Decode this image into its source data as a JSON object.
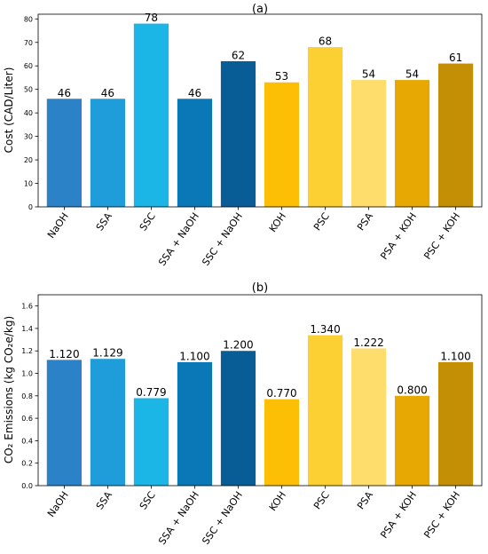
{
  "chart_data": [
    {
      "type": "bar",
      "title": "(a)",
      "ylabel": "Cost (CAD/Liter)",
      "ylim": [
        0,
        82
      ],
      "yticks": [
        0,
        10,
        20,
        30,
        40,
        50,
        60,
        70,
        80
      ],
      "categories": [
        "NaOH",
        "SSA",
        "SSC",
        "SSA + NaOH",
        "SSC + NaOH",
        "KOH",
        "PSC",
        "PSA",
        "PSA + KOH",
        "PSC + KOH"
      ],
      "values": [
        46,
        46,
        78,
        46,
        62,
        53,
        68,
        54,
        54,
        61
      ],
      "value_labels": [
        "46",
        "46",
        "78",
        "46",
        "62",
        "53",
        "68",
        "54",
        "54",
        "61"
      ],
      "colors": [
        "#2c82c6",
        "#1f9ddb",
        "#1bb5e6",
        "#0a78b6",
        "#085d97",
        "#fdbf06",
        "#fcd032",
        "#fedd6d",
        "#e7a804",
        "#c38f04"
      ],
      "grid": false,
      "legend": "none"
    },
    {
      "type": "bar",
      "title": "(b)",
      "ylabel": "CO₂ Emissions (kg CO₂e/kg)",
      "ylim": [
        0,
        1.7
      ],
      "yticks": [
        0.0,
        0.2,
        0.4,
        0.6,
        0.8,
        1.0,
        1.2,
        1.4,
        1.6
      ],
      "ytick_labels": [
        "0.0",
        "0.2",
        "0.4",
        "0.6",
        "0.8",
        "1.0",
        "1.2",
        "1.4",
        "1.6"
      ],
      "categories": [
        "NaOH",
        "SSA",
        "SSC",
        "SSA + NaOH",
        "SSC + NaOH",
        "KOH",
        "PSC",
        "PSA",
        "PSA + KOH",
        "PSC + KOH"
      ],
      "values": [
        1.12,
        1.129,
        0.779,
        1.1,
        1.2,
        0.77,
        1.34,
        1.222,
        0.8,
        1.1
      ],
      "value_labels": [
        "1.120",
        "1.129",
        "0.779",
        "1.100",
        "1.200",
        "0.770",
        "1.340",
        "1.222",
        "0.800",
        "1.100"
      ],
      "colors": [
        "#2c82c6",
        "#1f9ddb",
        "#1bb5e6",
        "#0a78b6",
        "#085d97",
        "#fdbf06",
        "#fcd032",
        "#fedd6d",
        "#e7a804",
        "#c38f04"
      ],
      "grid": false,
      "legend": "none"
    }
  ]
}
